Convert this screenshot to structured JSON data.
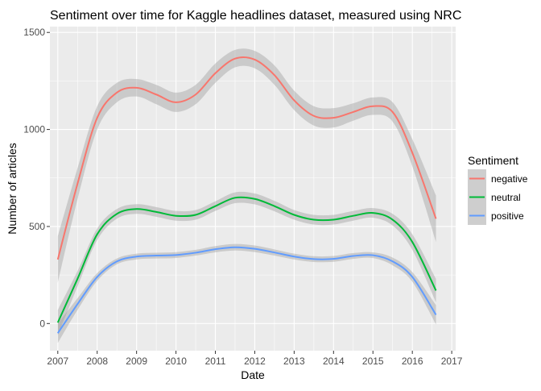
{
  "chart_data": {
    "type": "line",
    "title": "Sentiment over time for Kaggle headlines dataset, measured using NRC",
    "xlabel": "Date",
    "ylabel": "Number of articles",
    "xlim": [
      2006.8,
      2017.1
    ],
    "ylim": [
      -140,
      1530
    ],
    "x_ticks": [
      2007,
      2008,
      2009,
      2010,
      2011,
      2012,
      2013,
      2014,
      2015,
      2016,
      2017
    ],
    "y_ticks": [
      0,
      500,
      1000,
      1500
    ],
    "grid": true,
    "legend_title": "Sentiment",
    "legend_position": "right",
    "x": [
      2007.0,
      2007.5,
      2008.0,
      2008.5,
      2009.0,
      2009.5,
      2010.0,
      2010.5,
      2011.0,
      2011.5,
      2012.0,
      2012.5,
      2013.0,
      2013.5,
      2014.0,
      2014.5,
      2015.0,
      2015.5,
      2016.0,
      2016.6
    ],
    "series": [
      {
        "name": "negative",
        "color": "#F8766D",
        "values": [
          330,
          720,
          1060,
          1190,
          1215,
          1180,
          1140,
          1180,
          1290,
          1365,
          1360,
          1280,
          1150,
          1070,
          1060,
          1090,
          1120,
          1090,
          880,
          540
        ],
        "ci": [
          [
            210,
            450
          ],
          [
            640,
            800
          ],
          [
            1000,
            1120
          ],
          [
            1140,
            1240
          ],
          [
            1170,
            1260
          ],
          [
            1130,
            1230
          ],
          [
            1090,
            1190
          ],
          [
            1130,
            1230
          ],
          [
            1240,
            1340
          ],
          [
            1320,
            1410
          ],
          [
            1315,
            1405
          ],
          [
            1230,
            1330
          ],
          [
            1100,
            1200
          ],
          [
            1020,
            1120
          ],
          [
            1010,
            1110
          ],
          [
            1045,
            1135
          ],
          [
            1075,
            1165
          ],
          [
            1040,
            1140
          ],
          [
            810,
            950
          ],
          [
            420,
            660
          ]
        ]
      },
      {
        "name": "neutral",
        "color": "#00BA38",
        "values": [
          5,
          230,
          460,
          565,
          590,
          575,
          555,
          560,
          605,
          648,
          642,
          605,
          560,
          535,
          535,
          555,
          570,
          535,
          420,
          170
        ],
        "ci": [
          [
            -60,
            70
          ],
          [
            190,
            270
          ],
          [
            430,
            490
          ],
          [
            540,
            590
          ],
          [
            565,
            615
          ],
          [
            550,
            600
          ],
          [
            530,
            580
          ],
          [
            535,
            585
          ],
          [
            580,
            630
          ],
          [
            620,
            676
          ],
          [
            614,
            670
          ],
          [
            578,
            632
          ],
          [
            535,
            585
          ],
          [
            510,
            560
          ],
          [
            510,
            560
          ],
          [
            530,
            580
          ],
          [
            545,
            595
          ],
          [
            505,
            565
          ],
          [
            380,
            460
          ],
          [
            110,
            230
          ]
        ]
      },
      {
        "name": "positive",
        "color": "#619CFF",
        "values": [
          -50,
          100,
          240,
          320,
          345,
          350,
          353,
          365,
          383,
          393,
          385,
          366,
          345,
          332,
          333,
          348,
          352,
          320,
          240,
          45
        ],
        "ci": [
          [
            -100,
            0
          ],
          [
            70,
            130
          ],
          [
            220,
            260
          ],
          [
            305,
            335
          ],
          [
            330,
            360
          ],
          [
            335,
            365
          ],
          [
            338,
            368
          ],
          [
            350,
            380
          ],
          [
            367,
            399
          ],
          [
            376,
            410
          ],
          [
            368,
            402
          ],
          [
            350,
            382
          ],
          [
            330,
            360
          ],
          [
            317,
            347
          ],
          [
            318,
            348
          ],
          [
            333,
            363
          ],
          [
            337,
            367
          ],
          [
            300,
            340
          ],
          [
            215,
            265
          ],
          [
            -5,
            95
          ]
        ]
      }
    ]
  }
}
